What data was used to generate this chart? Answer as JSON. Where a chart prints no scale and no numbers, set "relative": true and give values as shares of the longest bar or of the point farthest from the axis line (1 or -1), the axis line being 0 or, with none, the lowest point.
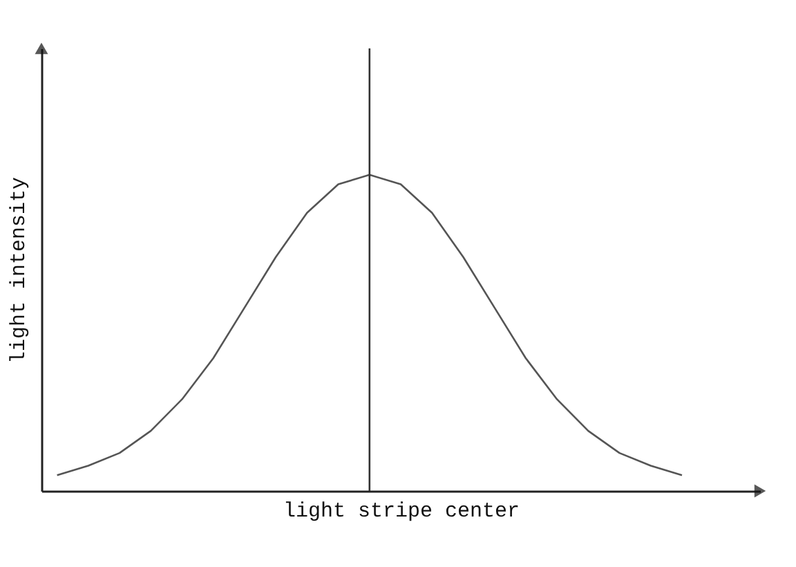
{
  "chart_data": {
    "type": "line",
    "relative": true,
    "xlabel": "light stripe center",
    "ylabel": "light intensity",
    "categories": [
      null,
      null,
      null,
      null,
      null,
      null,
      null,
      null,
      null,
      null,
      null,
      null,
      null,
      null,
      null,
      null,
      null,
      null,
      null,
      null,
      null
    ],
    "series": [
      {
        "color": "#555555",
        "values": [
          0.05,
          0.08,
          0.12,
          0.19,
          0.29,
          0.42,
          0.58,
          0.74,
          0.88,
          0.97,
          1,
          0.97,
          0.88,
          0.74,
          0.58,
          0.42,
          0.29,
          0.19,
          0.12,
          0.08,
          0.05
        ]
      }
    ],
    "grid": false,
    "marker": "none",
    "line_style": "solid",
    "tick_labels": false
  }
}
